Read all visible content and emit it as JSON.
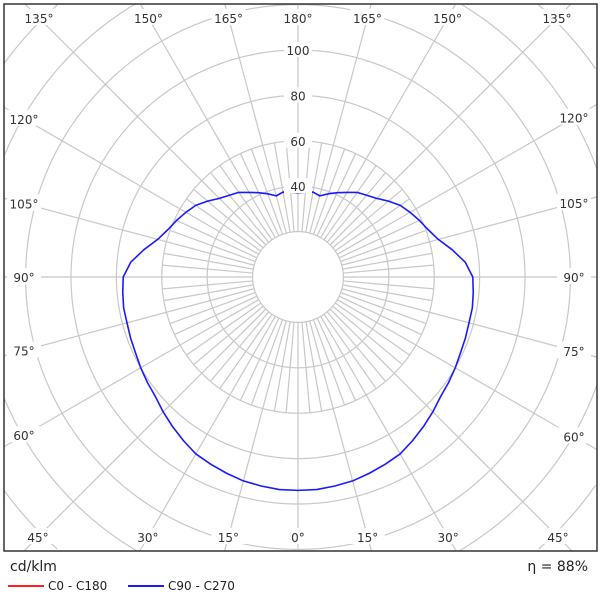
{
  "chart_data": {
    "type": "polar",
    "unit_label": "cd/klm",
    "efficiency_label": "η = 88%",
    "radial_ticks": [
      40,
      60,
      80,
      100
    ],
    "radial_range": [
      0,
      100
    ],
    "angle_labels": {
      "top": [
        "135°",
        "150°",
        "165°",
        "180°",
        "165°",
        "150°",
        "135°"
      ],
      "left": [
        "120°",
        "105°",
        "90°",
        "75°",
        "60°"
      ],
      "right": [
        "120°",
        "105°",
        "90°",
        "75°",
        "60°"
      ],
      "bottom": [
        "45°",
        "30°",
        "15°",
        "0°",
        "15°",
        "30°",
        "45°"
      ]
    },
    "grid": true,
    "legend_placement": "bottom-left",
    "series": [
      {
        "name": "C0 - C180",
        "color": "#ff2020",
        "angles": [],
        "values": []
      },
      {
        "name": "C90 - C270",
        "color": "#1a1aff",
        "angles": [
          0,
          5,
          10,
          15,
          20,
          25,
          30,
          35,
          40,
          45,
          50,
          55,
          60,
          65,
          70,
          75,
          80,
          85,
          90,
          95,
          100,
          105,
          110,
          115,
          120,
          125,
          130,
          135,
          140,
          145,
          150,
          155,
          160,
          165,
          170,
          175,
          180
        ],
        "values": [
          94,
          94,
          93.5,
          93,
          92,
          91,
          90,
          88,
          86,
          84,
          82,
          81,
          80,
          79,
          78.5,
          78,
          78,
          77.5,
          77,
          74,
          69,
          64,
          61,
          59,
          57,
          55,
          52,
          49,
          47,
          45.5,
          43,
          41,
          39,
          37,
          38,
          37.5,
          37
        ]
      }
    ]
  }
}
